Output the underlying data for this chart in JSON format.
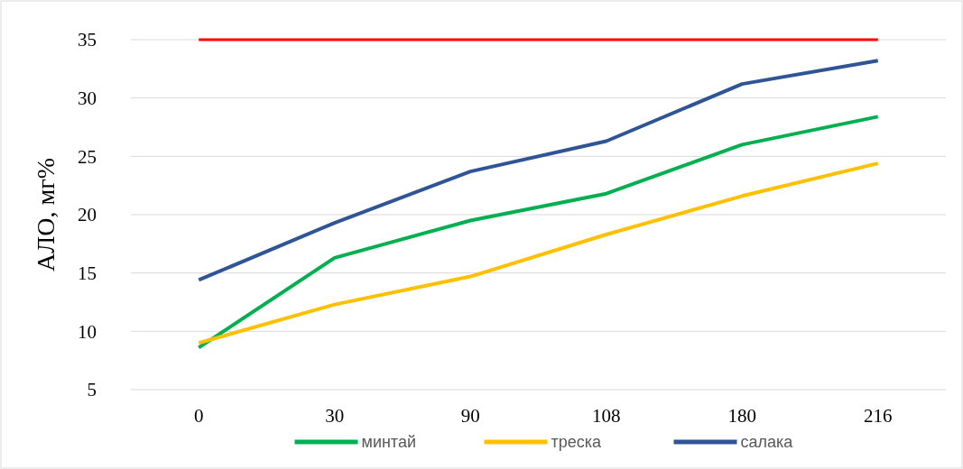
{
  "chart_data": {
    "type": "line",
    "ylabel": "АЛО, мг%",
    "categories": [
      "0",
      "30",
      "90",
      "108",
      "180",
      "216"
    ],
    "series": [
      {
        "name": "минтай",
        "color": "#00b050",
        "values": [
          8.6,
          16.3,
          19.5,
          21.8,
          26,
          28.4
        ]
      },
      {
        "name": "треска",
        "color": "#ffc000",
        "values": [
          9,
          12.3,
          14.7,
          18.3,
          21.6,
          24.4
        ]
      },
      {
        "name": "салака",
        "color": "#2f5597",
        "values": [
          14.4,
          19.3,
          23.7,
          26.3,
          31.2,
          33.2
        ]
      }
    ],
    "ylim": [
      5,
      35
    ],
    "yticks": [
      5,
      10,
      15,
      20,
      25,
      30,
      35
    ],
    "grid": "y",
    "legend": "bottom",
    "marker": "none",
    "line_style": "solid",
    "ref_lines": [
      {
        "axis": "y",
        "value": 35,
        "color": "#ff0000"
      }
    ]
  }
}
